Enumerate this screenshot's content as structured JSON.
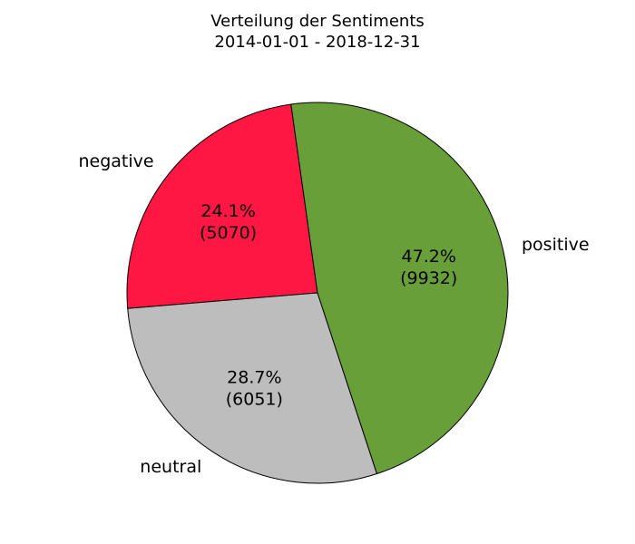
{
  "chart_data": {
    "type": "pie",
    "title": "Verteilung der Sentiments",
    "subtitle": "2014-01-01 - 2018-12-31",
    "categories": [
      "negative",
      "neutral",
      "positive"
    ],
    "values": [
      5070,
      6051,
      9932
    ],
    "percent_labels": [
      "24.1%",
      "28.7%",
      "47.2%"
    ],
    "count_labels": [
      "(5070)",
      "(6051)",
      "(9932)"
    ],
    "colors": [
      "#ff1744",
      "#bdbdbd",
      "#689f38"
    ],
    "edge_color": "#000000"
  }
}
